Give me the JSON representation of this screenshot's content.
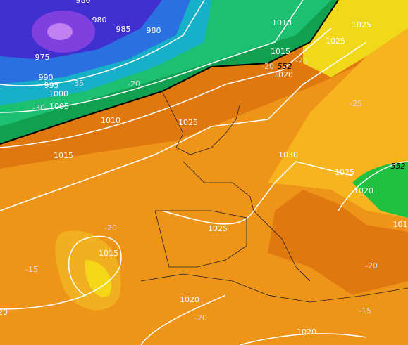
{
  "labels": [
    "980",
    "980",
    "985",
    "980",
    "975",
    "990",
    "995",
    "1000",
    "1005",
    "-35",
    "-30",
    "-20",
    "1010",
    "1015",
    "1010",
    "1025",
    "1015",
    "1025",
    "-20",
    "552",
    "-25",
    "1020",
    "-25",
    "1025",
    "1030",
    "1025",
    "552",
    "1020",
    "101",
    "-20",
    "1025",
    "1015",
    "-15",
    "-20",
    "1020",
    "-20",
    "-15",
    "20",
    "1020"
  ]
}
